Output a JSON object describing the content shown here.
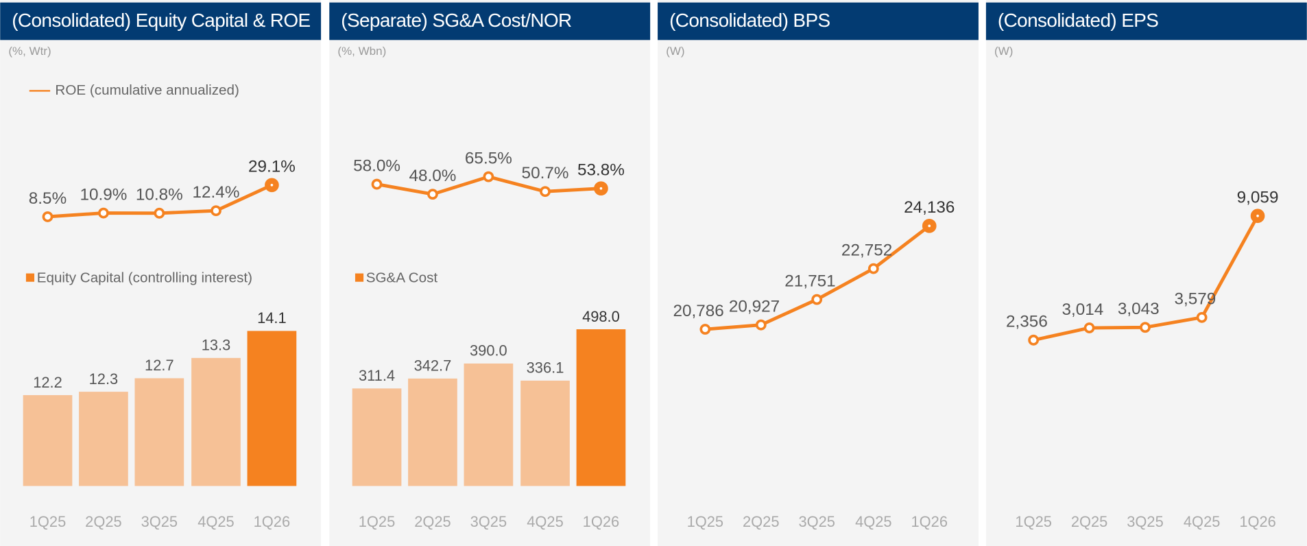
{
  "chart_data": [
    {
      "type": "bar_line",
      "title": "(Consolidated) Equity Capital & ROE",
      "unit_label": "(%, Wtr)",
      "categories": [
        "1Q25",
        "2Q25",
        "3Q25",
        "4Q25",
        "1Q26"
      ],
      "series": [
        {
          "name": "ROE (cumulative annualized)",
          "type": "line",
          "color": "#f58220",
          "values": [
            8.5,
            10.9,
            10.8,
            12.4,
            29.1
          ],
          "value_labels": [
            "8.5%",
            "10.9%",
            "10.8%",
            "12.4%",
            "29.1%"
          ]
        },
        {
          "name": "Equity Capital (controlling interest)",
          "type": "bar",
          "colors": [
            "#f6c196",
            "#f6c196",
            "#f6c196",
            "#f6c196",
            "#f58220"
          ],
          "values": [
            12.2,
            12.3,
            12.7,
            13.3,
            14.1
          ]
        }
      ]
    },
    {
      "type": "bar_line",
      "title": "(Separate) SG&A Cost/NOR",
      "unit_label": "(%, Wbn)",
      "categories": [
        "1Q25",
        "2Q25",
        "3Q25",
        "4Q25",
        "1Q26"
      ],
      "series": [
        {
          "type": "line",
          "color": "#f58220",
          "values": [
            58.0,
            48.0,
            65.5,
            50.7,
            53.8
          ],
          "value_labels": [
            "58.0%",
            "48.0%",
            "65.5%",
            "50.7%",
            "53.8%"
          ]
        },
        {
          "name": "SG&A Cost",
          "type": "bar",
          "colors": [
            "#f6c196",
            "#f6c196",
            "#f6c196",
            "#f6c196",
            "#f58220"
          ],
          "values": [
            311.4,
            342.7,
            390.0,
            336.1,
            498.0
          ],
          "value_labels": [
            "311.4",
            "342.7",
            "390.0",
            "336.1",
            "498.0"
          ]
        }
      ]
    },
    {
      "type": "line",
      "title": "(Consolidated) BPS",
      "unit_label": "(W)",
      "categories": [
        "1Q25",
        "2Q25",
        "3Q25",
        "4Q25",
        "1Q26"
      ],
      "series": [
        {
          "type": "line",
          "color": "#f58220",
          "values": [
            20786,
            20927,
            21751,
            22752,
            24136
          ],
          "value_labels": [
            "20,786",
            "20,927",
            "21,751",
            "22,752",
            "24,136"
          ]
        }
      ]
    },
    {
      "type": "line",
      "title": "(Consolidated) EPS",
      "unit_label": "(W)",
      "categories": [
        "1Q25",
        "2Q25",
        "3Q25",
        "4Q25",
        "1Q26"
      ],
      "series": [
        {
          "type": "line",
          "color": "#f58220",
          "values": [
            2356,
            3014,
            3043,
            3579,
            9059
          ],
          "value_labels": [
            "2,356",
            "3,014",
            "3,043",
            "3,579",
            "9,059"
          ]
        }
      ]
    }
  ]
}
